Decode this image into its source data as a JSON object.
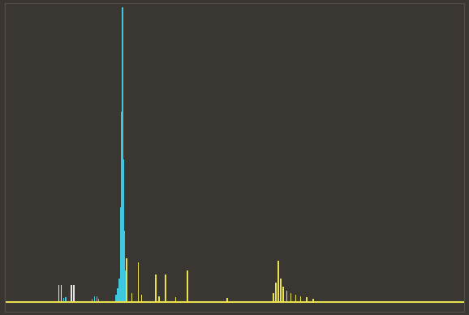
{
  "chart_data": {
    "type": "bar",
    "xlim": [
      0,
      578
    ],
    "ylim": [
      -12,
      377
    ],
    "tick_labels": false,
    "grid": false,
    "series": [
      {
        "color": "#e6e6e6",
        "x": [
          68,
          71,
          84,
          87
        ],
        "values": [
          22,
          22,
          22,
          22
        ]
      },
      {
        "color": "#3ec8e0",
        "x": [
          74,
          77,
          110,
          113,
          116,
          118,
          140,
          142,
          144,
          146,
          147,
          148,
          149,
          150,
          152,
          154
        ],
        "values": [
          5,
          6,
          4,
          8,
          7,
          4,
          10,
          18,
          30,
          120,
          240,
          372,
          180,
          90,
          40,
          15
        ]
      },
      {
        "color": "#e8e050",
        "x": [
          153,
          160,
          168,
          172,
          190,
          194,
          202,
          215,
          230,
          280,
          338,
          341,
          344,
          347,
          350,
          355,
          360,
          366,
          372,
          380,
          388
        ],
        "values": [
          55,
          12,
          50,
          10,
          35,
          8,
          35,
          6,
          40,
          5,
          12,
          25,
          52,
          30,
          20,
          15,
          12,
          10,
          8,
          6,
          4
        ]
      }
    ]
  }
}
